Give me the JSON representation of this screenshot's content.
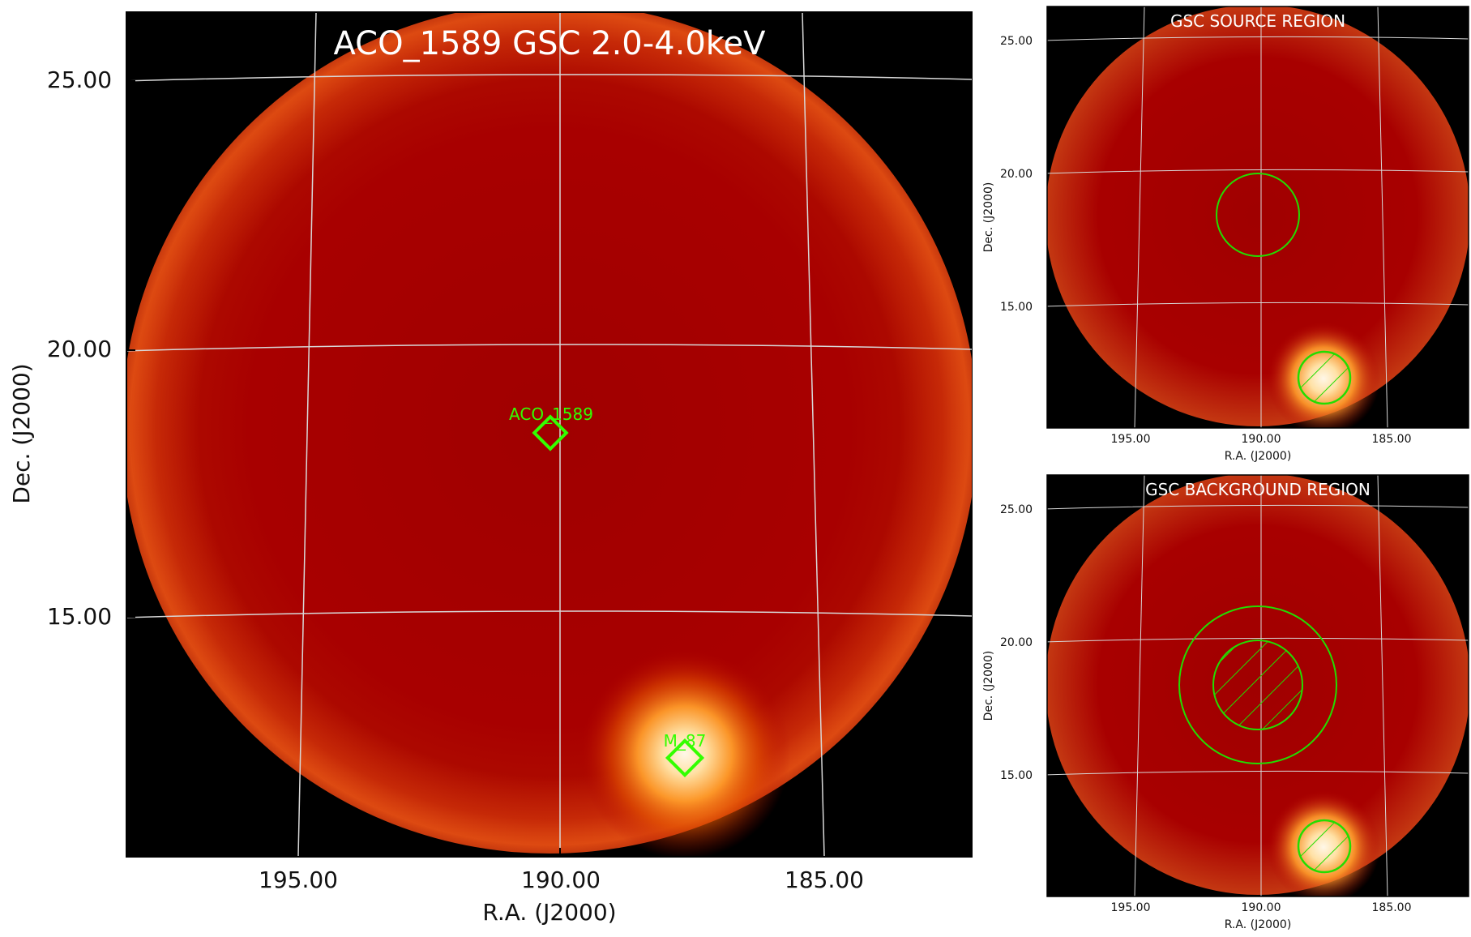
{
  "colors": {
    "background": "#000000",
    "disk": "#a80000",
    "hotspot": "#fff2d8",
    "grid": "#d8d8d8",
    "region": "#22dd00",
    "marker": "#33ff00",
    "title_text": "#ffffff",
    "axis_text": "#111111"
  },
  "main_panel": {
    "title": "ACO_1589 GSC 2.0-4.0keV",
    "xlabel": "R.A. (J2000)",
    "ylabel": "Dec. (J2000)",
    "ra_ticks": [
      "195.00",
      "190.00",
      "185.00"
    ],
    "dec_ticks": [
      "25.00",
      "20.00",
      "15.00"
    ],
    "sources": [
      {
        "name": "ACO_1589",
        "ra": 190.2,
        "dec": 18.6
      },
      {
        "name": "M_87",
        "ra": 187.7,
        "dec": 12.4
      }
    ]
  },
  "source_panel": {
    "title": "GSC SOURCE REGION",
    "xlabel": "R.A. (J2000)",
    "ylabel": "Dec. (J2000)",
    "ra_ticks": [
      "195.00",
      "190.00",
      "185.00"
    ],
    "dec_ticks": [
      "25.00",
      "20.00",
      "15.00"
    ]
  },
  "background_panel": {
    "title": "GSC BACKGROUND REGION",
    "xlabel": "R.A. (J2000)",
    "ylabel": "Dec. (J2000)",
    "ra_ticks": [
      "195.00",
      "190.00",
      "185.00"
    ],
    "dec_ticks": [
      "25.00",
      "20.00",
      "15.00"
    ]
  }
}
